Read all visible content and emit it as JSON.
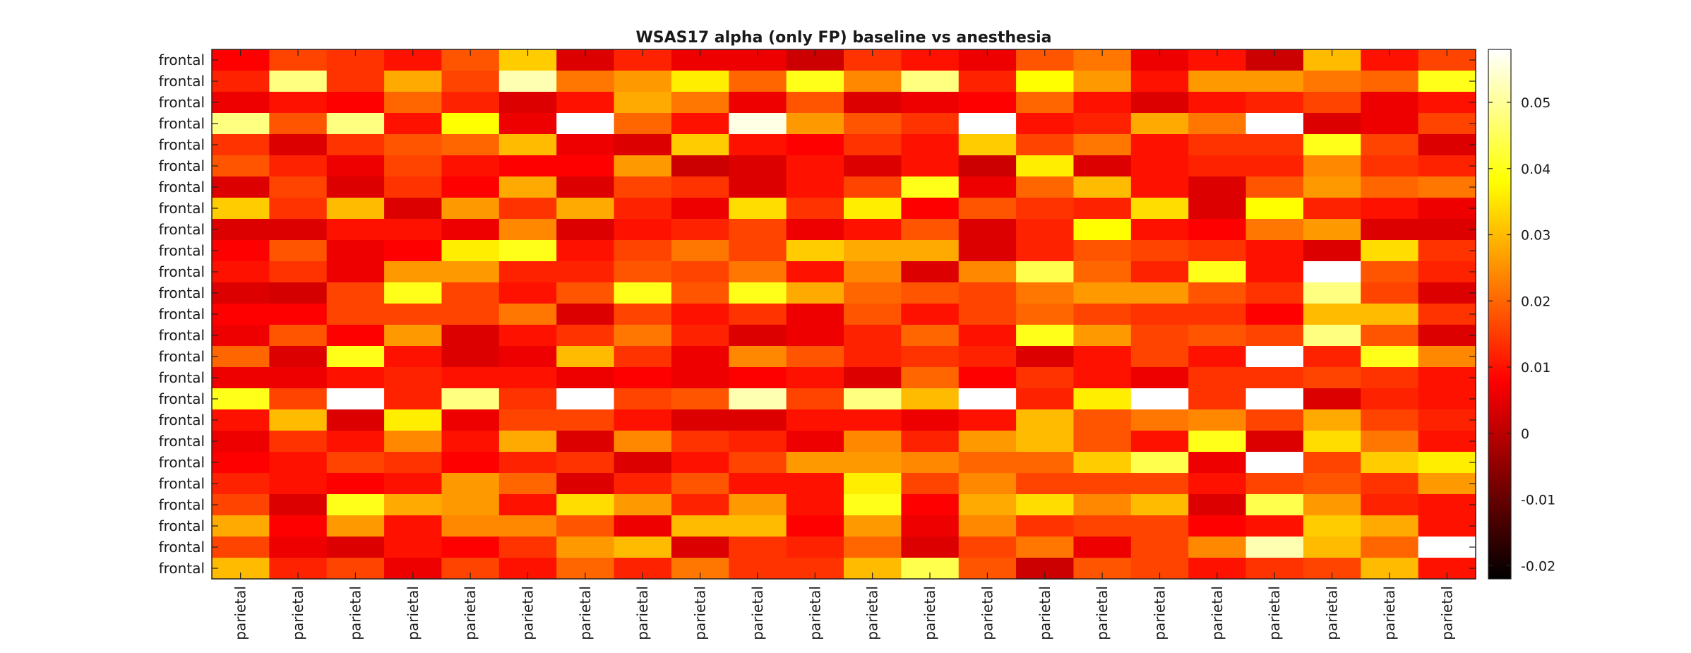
{
  "chart_data": {
    "type": "heatmap",
    "title": "WSAS17 alpha (only FP) baseline vs anesthesia",
    "row_labels": [
      "frontal",
      "frontal",
      "frontal",
      "frontal",
      "frontal",
      "frontal",
      "frontal",
      "frontal",
      "frontal",
      "frontal",
      "frontal",
      "frontal",
      "frontal",
      "frontal",
      "frontal",
      "frontal",
      "frontal",
      "frontal",
      "frontal",
      "frontal",
      "frontal",
      "frontal",
      "frontal",
      "frontal",
      "frontal"
    ],
    "col_labels": [
      "parietal",
      "parietal",
      "parietal",
      "parietal",
      "parietal",
      "parietal",
      "parietal",
      "parietal",
      "parietal",
      "parietal",
      "parietal",
      "parietal",
      "parietal",
      "parietal",
      "parietal",
      "parietal",
      "parietal",
      "parietal",
      "parietal",
      "parietal",
      "parietal",
      "parietal"
    ],
    "colormap": "hot",
    "clim": [
      -0.022,
      0.058
    ],
    "colorbar_ticks": [
      -0.02,
      -0.01,
      0,
      0.01,
      0.02,
      0.03,
      0.04,
      0.05
    ],
    "colorbar_tick_labels": [
      "-0.02",
      "-0.01",
      "0",
      "0.01",
      "0.02",
      "0.03",
      "0.04",
      "0.05"
    ],
    "values": [
      [
        0.008,
        0.016,
        0.014,
        0.01,
        0.018,
        0.032,
        0.004,
        0.012,
        0.006,
        0.006,
        0.002,
        0.014,
        0.01,
        0.006,
        0.018,
        0.022,
        0.006,
        0.01,
        0.002,
        0.03,
        0.01,
        0.016
      ],
      [
        0.012,
        0.048,
        0.014,
        0.028,
        0.016,
        0.052,
        0.022,
        0.026,
        0.036,
        0.02,
        0.04,
        0.024,
        0.048,
        0.012,
        0.038,
        0.026,
        0.01,
        0.026,
        0.026,
        0.022,
        0.02,
        0.04
      ],
      [
        0.006,
        0.01,
        0.008,
        0.02,
        0.012,
        0.004,
        0.01,
        0.028,
        0.022,
        0.006,
        0.018,
        0.004,
        0.006,
        0.008,
        0.02,
        0.01,
        0.004,
        0.01,
        0.012,
        0.016,
        0.006,
        0.01
      ],
      [
        0.048,
        0.018,
        0.048,
        0.01,
        0.038,
        0.006,
        0.058,
        0.02,
        0.01,
        0.056,
        0.026,
        0.018,
        0.014,
        0.058,
        0.01,
        0.012,
        0.028,
        0.022,
        0.058,
        0.004,
        0.006,
        0.016
      ],
      [
        0.014,
        0.004,
        0.014,
        0.018,
        0.02,
        0.03,
        0.006,
        0.004,
        0.032,
        0.01,
        0.008,
        0.014,
        0.01,
        0.032,
        0.016,
        0.022,
        0.01,
        0.014,
        0.014,
        0.04,
        0.016,
        0.004
      ],
      [
        0.018,
        0.012,
        0.006,
        0.016,
        0.01,
        0.008,
        0.008,
        0.026,
        0.002,
        0.004,
        0.01,
        0.004,
        0.01,
        0.002,
        0.036,
        0.004,
        0.01,
        0.012,
        0.012,
        0.024,
        0.014,
        0.012
      ],
      [
        0.004,
        0.016,
        0.004,
        0.014,
        0.008,
        0.028,
        0.004,
        0.016,
        0.014,
        0.004,
        0.01,
        0.016,
        0.04,
        0.006,
        0.02,
        0.03,
        0.01,
        0.004,
        0.018,
        0.026,
        0.02,
        0.022
      ],
      [
        0.032,
        0.014,
        0.03,
        0.004,
        0.026,
        0.014,
        0.028,
        0.012,
        0.006,
        0.034,
        0.014,
        0.036,
        0.008,
        0.018,
        0.014,
        0.012,
        0.034,
        0.004,
        0.038,
        0.012,
        0.01,
        0.006
      ],
      [
        0.004,
        0.004,
        0.01,
        0.01,
        0.006,
        0.024,
        0.004,
        0.01,
        0.012,
        0.016,
        0.006,
        0.01,
        0.018,
        0.004,
        0.012,
        0.038,
        0.01,
        0.008,
        0.022,
        0.026,
        0.004,
        0.004
      ],
      [
        0.008,
        0.018,
        0.006,
        0.008,
        0.036,
        0.04,
        0.01,
        0.016,
        0.022,
        0.016,
        0.032,
        0.028,
        0.028,
        0.004,
        0.012,
        0.018,
        0.016,
        0.014,
        0.01,
        0.004,
        0.034,
        0.014
      ],
      [
        0.01,
        0.014,
        0.006,
        0.026,
        0.026,
        0.012,
        0.012,
        0.018,
        0.016,
        0.022,
        0.01,
        0.024,
        0.004,
        0.024,
        0.044,
        0.02,
        0.012,
        0.04,
        0.01,
        0.058,
        0.018,
        0.012
      ],
      [
        0.004,
        0.003,
        0.016,
        0.04,
        0.016,
        0.01,
        0.018,
        0.04,
        0.018,
        0.04,
        0.028,
        0.02,
        0.018,
        0.016,
        0.022,
        0.026,
        0.026,
        0.018,
        0.014,
        0.048,
        0.016,
        0.004
      ],
      [
        0.008,
        0.008,
        0.016,
        0.016,
        0.016,
        0.022,
        0.004,
        0.016,
        0.01,
        0.014,
        0.006,
        0.018,
        0.01,
        0.016,
        0.02,
        0.016,
        0.014,
        0.014,
        0.008,
        0.03,
        0.03,
        0.014
      ],
      [
        0.006,
        0.018,
        0.008,
        0.026,
        0.004,
        0.01,
        0.014,
        0.022,
        0.012,
        0.004,
        0.006,
        0.012,
        0.02,
        0.01,
        0.04,
        0.026,
        0.016,
        0.018,
        0.016,
        0.048,
        0.018,
        0.004
      ],
      [
        0.02,
        0.004,
        0.04,
        0.01,
        0.004,
        0.006,
        0.03,
        0.014,
        0.006,
        0.024,
        0.018,
        0.012,
        0.014,
        0.012,
        0.004,
        0.01,
        0.016,
        0.01,
        0.058,
        0.012,
        0.04,
        0.024
      ],
      [
        0.006,
        0.006,
        0.01,
        0.012,
        0.01,
        0.01,
        0.006,
        0.008,
        0.006,
        0.008,
        0.01,
        0.004,
        0.02,
        0.008,
        0.014,
        0.01,
        0.006,
        0.014,
        0.014,
        0.016,
        0.014,
        0.01
      ],
      [
        0.04,
        0.016,
        0.058,
        0.012,
        0.048,
        0.014,
        0.058,
        0.016,
        0.018,
        0.052,
        0.016,
        0.048,
        0.03,
        0.058,
        0.012,
        0.036,
        0.058,
        0.014,
        0.058,
        0.004,
        0.012,
        0.01
      ],
      [
        0.01,
        0.03,
        0.004,
        0.036,
        0.006,
        0.016,
        0.016,
        0.01,
        0.004,
        0.004,
        0.01,
        0.01,
        0.006,
        0.01,
        0.03,
        0.018,
        0.022,
        0.024,
        0.016,
        0.028,
        0.016,
        0.012
      ],
      [
        0.006,
        0.014,
        0.01,
        0.024,
        0.01,
        0.028,
        0.004,
        0.024,
        0.014,
        0.012,
        0.006,
        0.024,
        0.012,
        0.026,
        0.03,
        0.018,
        0.01,
        0.04,
        0.004,
        0.034,
        0.022,
        0.01
      ],
      [
        0.008,
        0.01,
        0.016,
        0.014,
        0.008,
        0.012,
        0.014,
        0.004,
        0.01,
        0.016,
        0.026,
        0.026,
        0.024,
        0.02,
        0.02,
        0.032,
        0.044,
        0.006,
        0.058,
        0.016,
        0.032,
        0.036
      ],
      [
        0.012,
        0.01,
        0.008,
        0.01,
        0.026,
        0.02,
        0.004,
        0.012,
        0.018,
        0.01,
        0.01,
        0.036,
        0.016,
        0.024,
        0.016,
        0.016,
        0.016,
        0.01,
        0.016,
        0.018,
        0.014,
        0.026
      ],
      [
        0.016,
        0.004,
        0.04,
        0.028,
        0.026,
        0.01,
        0.034,
        0.026,
        0.012,
        0.026,
        0.01,
        0.04,
        0.008,
        0.028,
        0.034,
        0.024,
        0.03,
        0.004,
        0.044,
        0.026,
        0.012,
        0.01
      ],
      [
        0.028,
        0.008,
        0.026,
        0.01,
        0.024,
        0.024,
        0.018,
        0.006,
        0.03,
        0.03,
        0.008,
        0.026,
        0.006,
        0.024,
        0.014,
        0.016,
        0.016,
        0.008,
        0.01,
        0.032,
        0.028,
        0.01
      ],
      [
        0.016,
        0.006,
        0.004,
        0.01,
        0.008,
        0.014,
        0.026,
        0.03,
        0.004,
        0.014,
        0.012,
        0.02,
        0.004,
        0.016,
        0.022,
        0.006,
        0.016,
        0.024,
        0.052,
        0.03,
        0.02,
        0.058
      ],
      [
        0.03,
        0.012,
        0.016,
        0.006,
        0.016,
        0.01,
        0.02,
        0.012,
        0.022,
        0.014,
        0.014,
        0.03,
        0.044,
        0.018,
        0.002,
        0.018,
        0.016,
        0.01,
        0.014,
        0.016,
        0.03,
        0.01
      ]
    ]
  }
}
